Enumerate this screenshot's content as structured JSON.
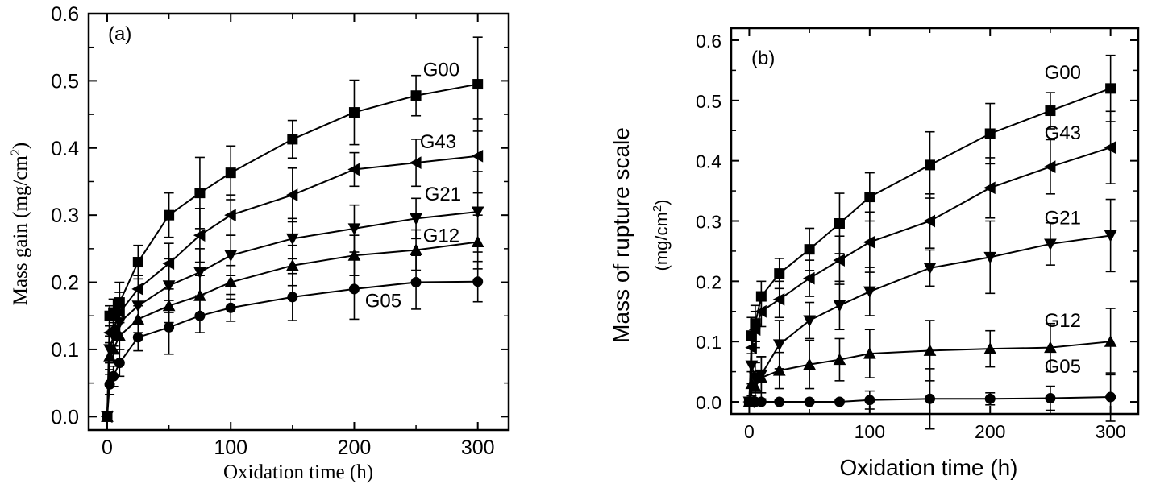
{
  "chart_data": [
    {
      "type": "line",
      "panel_label": "(a)",
      "xlabel": "Oxidation time (h)",
      "ylabel": "Mass gain (mg/cm",
      "ylabel_sup": "2",
      "ylabel_end": ")",
      "xlim": [
        -15,
        325
      ],
      "ylim": [
        -0.02,
        0.6
      ],
      "xticks": [
        0,
        100,
        200,
        300
      ],
      "xtick_labels": [
        "0",
        "100",
        "200",
        "300"
      ],
      "yticks": [
        0.0,
        0.1,
        0.2,
        0.3,
        0.4,
        0.5,
        0.6
      ],
      "ytick_labels": [
        "0.0",
        "0.1",
        "0.2",
        "0.3",
        "0.4",
        "0.5",
        "0.6"
      ],
      "x": [
        0,
        2,
        5,
        10,
        25,
        50,
        75,
        100,
        150,
        200,
        250,
        300
      ],
      "series": [
        {
          "name": "G00",
          "marker": "square",
          "values": [
            0.0,
            0.15,
            0.155,
            0.17,
            0.23,
            0.3,
            0.333,
            0.363,
            0.413,
            0.453,
            0.478,
            0.495
          ],
          "errors": [
            0.0,
            0.015,
            0.02,
            0.03,
            0.025,
            0.033,
            0.053,
            0.04,
            0.028,
            0.048,
            0.03,
            0.07
          ]
        },
        {
          "name": "G43",
          "marker": "triangle-left",
          "values": [
            0.0,
            0.125,
            0.13,
            0.155,
            0.19,
            0.228,
            0.27,
            0.3,
            0.33,
            0.368,
            0.378,
            0.388
          ],
          "errors": [
            0.0,
            0.02,
            0.025,
            0.03,
            0.02,
            0.03,
            0.04,
            0.03,
            0.04,
            0.025,
            0.035,
            0.055
          ]
        },
        {
          "name": "G21",
          "marker": "triangle-down",
          "values": [
            0.0,
            0.1,
            0.12,
            0.14,
            0.165,
            0.195,
            0.215,
            0.24,
            0.265,
            0.28,
            0.295,
            0.305
          ],
          "errors": [
            0.0,
            0.02,
            0.02,
            0.025,
            0.025,
            0.04,
            0.035,
            0.03,
            0.03,
            0.035,
            0.03,
            0.06
          ]
        },
        {
          "name": "G12",
          "marker": "triangle-up",
          "values": [
            0.0,
            0.09,
            0.1,
            0.12,
            0.145,
            0.165,
            0.18,
            0.2,
            0.225,
            0.24,
            0.248,
            0.26
          ],
          "errors": [
            0.0,
            0.02,
            0.02,
            0.02,
            0.02,
            0.025,
            0.03,
            0.025,
            0.03,
            0.03,
            0.03,
            0.04
          ]
        },
        {
          "name": "G05",
          "marker": "circle",
          "values": [
            0.0,
            0.048,
            0.06,
            0.08,
            0.118,
            0.133,
            0.15,
            0.162,
            0.178,
            0.19,
            0.2,
            0.201
          ],
          "errors": [
            0.0,
            0.015,
            0.015,
            0.02,
            0.02,
            0.04,
            0.025,
            0.02,
            0.035,
            0.045,
            0.04,
            0.03
          ]
        }
      ],
      "legend": "inline series labels at right end"
    },
    {
      "type": "line",
      "panel_label": "(b)",
      "xlabel": "Oxidation time (h)",
      "ylabel": "Mass of rupture scale",
      "ylabel2": "(mg/cm",
      "ylabel2_sup": "2",
      "ylabel2_end": ")",
      "xlim": [
        -15,
        323
      ],
      "ylim": [
        -0.02,
        0.62
      ],
      "xticks": [
        0,
        100,
        200,
        300
      ],
      "xtick_labels": [
        "0",
        "100",
        "200",
        "300"
      ],
      "yticks": [
        0.0,
        0.1,
        0.2,
        0.3,
        0.4,
        0.5,
        0.6
      ],
      "ytick_labels": [
        "0.0",
        "0.1",
        "0.2",
        "0.3",
        "0.4",
        "0.5",
        "0.6"
      ],
      "x": [
        0,
        2,
        5,
        10,
        25,
        50,
        75,
        100,
        150,
        200,
        250,
        300
      ],
      "series": [
        {
          "name": "G00",
          "marker": "square",
          "values": [
            0.0,
            0.11,
            0.13,
            0.175,
            0.213,
            0.253,
            0.296,
            0.34,
            0.393,
            0.445,
            0.483,
            0.52
          ],
          "errors": [
            0.0,
            0.03,
            0.03,
            0.025,
            0.025,
            0.035,
            0.05,
            0.04,
            0.055,
            0.05,
            0.03,
            0.055
          ]
        },
        {
          "name": "G43",
          "marker": "triangle-left",
          "values": [
            0.0,
            0.09,
            0.12,
            0.15,
            0.17,
            0.205,
            0.235,
            0.265,
            0.3,
            0.355,
            0.39,
            0.422
          ],
          "errors": [
            0.0,
            0.025,
            0.03,
            0.025,
            0.03,
            0.03,
            0.04,
            0.05,
            0.045,
            0.05,
            0.045,
            0.06
          ]
        },
        {
          "name": "G21",
          "marker": "triangle-down",
          "values": [
            0.0,
            0.06,
            0.04,
            0.045,
            0.095,
            0.135,
            0.16,
            0.183,
            0.222,
            0.24,
            0.262,
            0.276
          ],
          "errors": [
            0.0,
            0.03,
            0.025,
            0.03,
            0.04,
            0.03,
            0.04,
            0.04,
            0.03,
            0.06,
            0.035,
            0.06
          ]
        },
        {
          "name": "G12",
          "marker": "triangle-up",
          "values": [
            0.0,
            0.03,
            0.025,
            0.04,
            0.052,
            0.062,
            0.07,
            0.08,
            0.085,
            0.088,
            0.09,
            0.1
          ],
          "errors": [
            0.0,
            0.02,
            0.02,
            0.035,
            0.03,
            0.04,
            0.035,
            0.04,
            0.05,
            0.03,
            0.04,
            0.055
          ]
        },
        {
          "name": "G05",
          "marker": "circle",
          "values": [
            0.0,
            0.0,
            0.0,
            0.0,
            0.0,
            0.0,
            0.0,
            0.003,
            0.005,
            0.005,
            0.006,
            0.008
          ],
          "errors": [
            0.0,
            0.002,
            0.002,
            0.002,
            0.002,
            0.003,
            0.003,
            0.015,
            0.05,
            0.01,
            0.02,
            0.04
          ]
        }
      ],
      "legend": "inline series labels at right end"
    }
  ]
}
